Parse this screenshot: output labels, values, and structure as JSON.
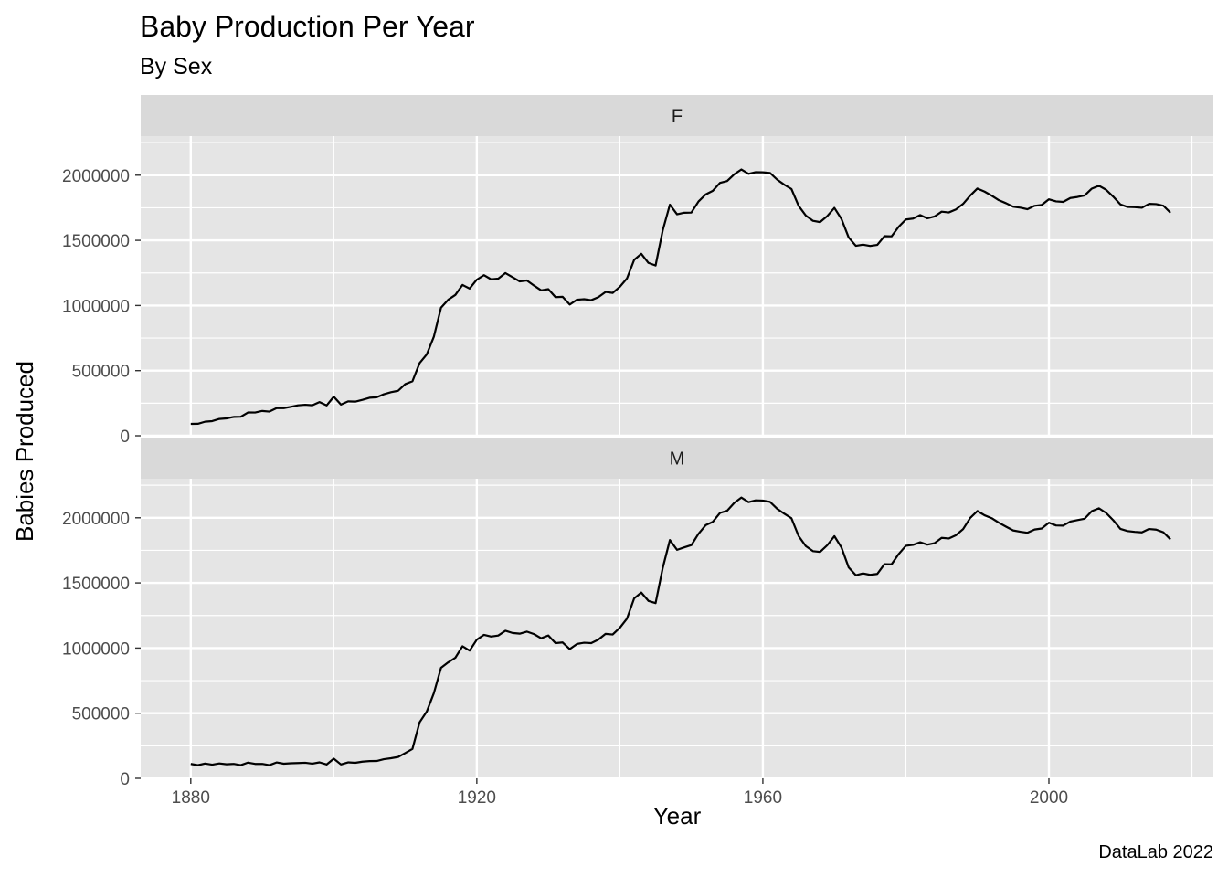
{
  "chart_data": {
    "type": "line",
    "title": "Baby Production Per Year",
    "subtitle": "By Sex",
    "caption": "DataLab 2022",
    "xlabel": "Year",
    "ylabel": "Babies Produced",
    "xlim": [
      1873,
      2023
    ],
    "ylim": [
      0,
      2300000
    ],
    "x_ticks": [
      1880,
      1920,
      1960,
      2000
    ],
    "y_ticks": [
      0,
      500000,
      1000000,
      1500000,
      2000000
    ],
    "x_tick_labels": [
      "1880",
      "1920",
      "1960",
      "2000"
    ],
    "y_tick_labels": [
      "0",
      "500000",
      "1000000",
      "1500000",
      "2000000"
    ],
    "grid": true,
    "legend": "none",
    "colors": {
      "panel": "#e5e5e5",
      "strip": "#d9d9d9",
      "grid": "#ffffff",
      "line": "#000000"
    },
    "x": [
      1880,
      1881,
      1882,
      1883,
      1884,
      1885,
      1886,
      1887,
      1888,
      1889,
      1890,
      1891,
      1892,
      1893,
      1894,
      1895,
      1896,
      1897,
      1898,
      1899,
      1900,
      1901,
      1902,
      1903,
      1904,
      1905,
      1906,
      1907,
      1908,
      1909,
      1910,
      1911,
      1912,
      1913,
      1914,
      1915,
      1916,
      1917,
      1918,
      1919,
      1920,
      1921,
      1922,
      1923,
      1924,
      1925,
      1926,
      1927,
      1928,
      1929,
      1930,
      1931,
      1932,
      1933,
      1934,
      1935,
      1936,
      1937,
      1938,
      1939,
      1940,
      1941,
      1942,
      1943,
      1944,
      1945,
      1946,
      1947,
      1948,
      1949,
      1950,
      1951,
      1952,
      1953,
      1954,
      1955,
      1956,
      1957,
      1958,
      1959,
      1960,
      1961,
      1962,
      1963,
      1964,
      1965,
      1966,
      1967,
      1968,
      1969,
      1970,
      1971,
      1972,
      1973,
      1974,
      1975,
      1976,
      1977,
      1978,
      1979,
      1980,
      1981,
      1982,
      1983,
      1984,
      1985,
      1986,
      1987,
      1988,
      1989,
      1990,
      1991,
      1992,
      1993,
      1994,
      1995,
      1996,
      1997,
      1998,
      1999,
      2000,
      2001,
      2002,
      2003,
      2004,
      2005,
      2006,
      2007,
      2008,
      2009,
      2010,
      2011,
      2012,
      2013,
      2014,
      2015,
      2016,
      2017
    ],
    "series": [
      {
        "name": "F",
        "values": [
          90994,
          91953,
          107847,
          112319,
          129019,
          133055,
          144533,
          145981,
          178622,
          178366,
          190376,
          185482,
          212346,
          212081,
          222495,
          233630,
          237921,
          234200,
          258770,
          233022,
          299822,
          239348,
          264075,
          261972,
          275374,
          291643,
          295303,
          318564,
          334285,
          345345,
          396505,
          418309,
          557939,
          624310,
          761377,
          983827,
          1044249,
          1081194,
          1157585,
          1130149,
          1198214,
          1232845,
          1200796,
          1206239,
          1248821,
          1217270,
          1185078,
          1192207,
          1152836,
          1116284,
          1125521,
          1064233,
          1066930,
          1007000,
          1044249,
          1048395,
          1040911,
          1063980,
          1103842,
          1096649,
          1143386,
          1207766,
          1350000,
          1397000,
          1327000,
          1307000,
          1577000,
          1774000,
          1700000,
          1712000,
          1713000,
          1798000,
          1852000,
          1880000,
          1941000,
          1955000,
          2007000,
          2044000,
          2010000,
          2023000,
          2022000,
          2017000,
          1966000,
          1927000,
          1894000,
          1765000,
          1691000,
          1650000,
          1640000,
          1686000,
          1749000,
          1663000,
          1522000,
          1458000,
          1467000,
          1457000,
          1465000,
          1532000,
          1531000,
          1605000,
          1660000,
          1667000,
          1694000,
          1669000,
          1683000,
          1720000,
          1714000,
          1737000,
          1780000,
          1844000,
          1898000,
          1874000,
          1843000,
          1808000,
          1785000,
          1758000,
          1751000,
          1739000,
          1765000,
          1772000,
          1815000,
          1799000,
          1795000,
          1825000,
          1833000,
          1845000,
          1897000,
          1919000,
          1888000,
          1835000,
          1776000,
          1756000,
          1755000,
          1750000,
          1780000,
          1778000,
          1766000,
          1712000
        ]
      },
      {
        "name": "M",
        "values": [
          110490,
          100743,
          113686,
          104625,
          114442,
          107799,
          110784,
          101413,
          120851,
          110580,
          111026,
          101196,
          122037,
          112317,
          115772,
          117398,
          119570,
          112758,
          122693,
          106212,
          150499,
          106470,
          122660,
          119233,
          128129,
          132319,
          133159,
          146838,
          154339,
          163983,
          194198,
          225936,
          429926,
          512482,
          654746,
          848647,
          890142,
          925624,
          1013720,
          980215,
          1064468,
          1101374,
          1088081,
          1096226,
          1132671,
          1115798,
          1110440,
          1126259,
          1107113,
          1075090,
          1096509,
          1038000,
          1043000,
          992000,
          1031000,
          1041000,
          1038000,
          1065000,
          1109000,
          1104000,
          1156000,
          1226000,
          1381000,
          1426000,
          1362000,
          1345000,
          1615000,
          1829000,
          1754000,
          1773000,
          1790000,
          1877000,
          1943000,
          1969000,
          2037000,
          2054000,
          2114000,
          2155000,
          2120000,
          2134000,
          2132000,
          2122000,
          2069000,
          2031000,
          1996000,
          1860000,
          1783000,
          1744000,
          1738000,
          1789000,
          1859000,
          1771000,
          1619000,
          1559000,
          1573000,
          1562000,
          1569000,
          1644000,
          1643000,
          1722000,
          1785000,
          1792000,
          1812000,
          1794000,
          1805000,
          1846000,
          1841000,
          1866000,
          1913000,
          1999000,
          2052000,
          2019000,
          1997000,
          1962000,
          1932000,
          1903000,
          1893000,
          1885000,
          1910000,
          1918000,
          1962000,
          1941000,
          1940000,
          1971000,
          1982000,
          1993000,
          2051000,
          2073000,
          2037000,
          1981000,
          1915000,
          1898000,
          1892000,
          1888000,
          1914000,
          1909000,
          1889000,
          1834000
        ]
      }
    ]
  }
}
